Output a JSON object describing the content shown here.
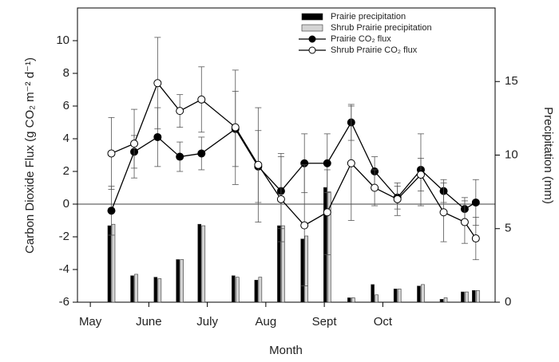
{
  "chart_data": {
    "type": "line_bar",
    "xlabel": "Month",
    "ylabel": "Carbon Dioxide Flux (g CO₂ m⁻² d⁻¹)",
    "y2label": "Precipitation (mm)",
    "x": [
      5.36,
      5.75,
      6.15,
      6.53,
      6.9,
      7.48,
      7.87,
      8.26,
      8.66,
      9.05,
      9.46,
      9.86,
      10.25,
      10.65,
      11.04,
      11.4,
      11.59
    ],
    "xlim": [
      4.78,
      11.92
    ],
    "xticks": [
      {
        "value": 5,
        "label": "May"
      },
      {
        "value": 6,
        "label": "June"
      },
      {
        "value": 7,
        "label": "July"
      },
      {
        "value": 8,
        "label": "Aug"
      },
      {
        "value": 9,
        "label": "Sept"
      },
      {
        "value": 10,
        "label": "Oct"
      }
    ],
    "ylim": [
      -6,
      12
    ],
    "yticks": [
      -6,
      -4,
      -2,
      0,
      2,
      4,
      6,
      8,
      10
    ],
    "y2lim": [
      0,
      20
    ],
    "y2ticks": [
      0,
      5,
      10,
      15
    ],
    "legend": "upper right",
    "series": [
      {
        "name": "Prairie precipitation",
        "type": "bar",
        "axis": "y2",
        "color": "#000000",
        "values": [
          5.2,
          1.8,
          1.7,
          2.9,
          5.3,
          1.8,
          1.5,
          5.2,
          4.3,
          7.8,
          0.3,
          1.2,
          0.9,
          1.1,
          0.2,
          0.7,
          0.8
        ]
      },
      {
        "name": "Shrub Prairie precipitation",
        "type": "bar",
        "axis": "y2",
        "color": "#d4d4d4",
        "values": [
          5.3,
          1.9,
          1.6,
          2.9,
          5.2,
          1.7,
          1.7,
          5.2,
          4.5,
          7.5,
          0.3,
          0.5,
          0.9,
          1.2,
          0.3,
          0.7,
          0.8
        ]
      },
      {
        "name": "Prairie  CO₂ flux",
        "type": "line",
        "color": "#000000",
        "values": [
          -0.4,
          3.2,
          4.1,
          2.9,
          3.1,
          4.6,
          2.3,
          0.8,
          2.5,
          2.5,
          5.0,
          2.0,
          0.4,
          2.1,
          0.8,
          -0.3,
          0.1
        ],
        "errors": [
          1.5,
          1.0,
          1.8,
          0.9,
          1.0,
          2.3,
          2.2,
          2.3,
          1.8,
          1.8,
          1.1,
          0.9,
          0.7,
          2.2,
          0.7,
          0.7,
          1.4
        ]
      },
      {
        "name": "Shrub Prairie CO₂ flux",
        "type": "line",
        "color": "#ffffff",
        "values": [
          3.1,
          3.7,
          7.4,
          5.7,
          6.4,
          4.7,
          2.4,
          0.3,
          -1.3,
          -0.5,
          2.5,
          1.0,
          0.3,
          1.8,
          -0.5,
          -1.1,
          -2.1
        ],
        "errors": [
          2.2,
          2.1,
          2.8,
          1.0,
          2.0,
          3.5,
          3.5,
          2.6,
          3.7,
          2.6,
          3.5,
          1.1,
          1.0,
          1.0,
          1.8,
          1.3,
          1.3
        ]
      }
    ]
  }
}
